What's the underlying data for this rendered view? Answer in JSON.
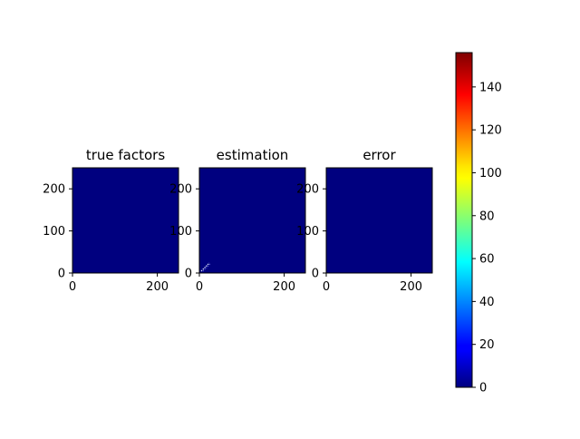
{
  "chart_data": {
    "type": "heatmap",
    "panels": [
      {
        "title": "true factors",
        "xlim": [
          0,
          250
        ],
        "ylim": [
          0,
          250
        ],
        "xticks": [
          "0",
          "200"
        ],
        "yticks": [
          "0",
          "100",
          "200"
        ],
        "fill_value": 0,
        "highlights": []
      },
      {
        "title": "estimation",
        "xlim": [
          0,
          250
        ],
        "ylim": [
          0,
          250
        ],
        "xticks": [
          "0",
          "200"
        ],
        "yticks": [
          "0",
          "100",
          "200"
        ],
        "fill_value": 0,
        "highlights": [
          {
            "x": 12,
            "y": 12,
            "value": 156
          },
          {
            "x": 18,
            "y": 18,
            "value": 150
          },
          {
            "x": 24,
            "y": 24,
            "value": 140
          }
        ]
      },
      {
        "title": "error",
        "xlim": [
          0,
          250
        ],
        "ylim": [
          0,
          250
        ],
        "xticks": [
          "0",
          "200"
        ],
        "yticks": [
          "0",
          "100",
          "200"
        ],
        "fill_value": 0,
        "highlights": []
      }
    ],
    "colorbar": {
      "colormap": "jet",
      "range": [
        0,
        156
      ],
      "ticks": [
        0,
        20,
        40,
        60,
        80,
        100,
        120,
        140
      ],
      "tick_labels": [
        "0",
        "20",
        "40",
        "60",
        "80",
        "100",
        "120",
        "140"
      ]
    },
    "colors": {
      "low": "#00007f",
      "background": "#ffffff",
      "axis": "#000000"
    }
  }
}
